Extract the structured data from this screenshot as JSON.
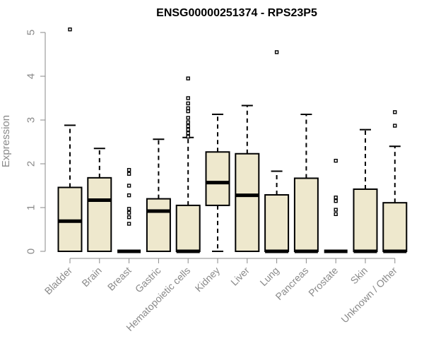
{
  "chart_data": {
    "type": "boxplot",
    "title": "ENSG00000251374 - RPS23P5",
    "ylabel": "Expression",
    "ylim": [
      0,
      5
    ],
    "yticks": [
      "0",
      "1",
      "2",
      "3",
      "4",
      "5"
    ],
    "box_color": "#eee8cd",
    "categories": [
      "Bladder",
      "Brain",
      "Breast",
      "Gastric",
      "Hematopoietic cells",
      "Kidney",
      "Liver",
      "Lung",
      "Pancreas",
      "Prostate",
      "Skin",
      "Unknown / Other"
    ],
    "boxes": [
      {
        "min": 0,
        "q1": 0,
        "median": 0.69,
        "q3": 1.46,
        "max": 2.88,
        "outliers": [
          5.07
        ]
      },
      {
        "min": 0,
        "q1": 0,
        "median": 1.17,
        "q3": 1.68,
        "max": 2.35,
        "outliers": []
      },
      {
        "min": 0,
        "q1": 0,
        "median": 0,
        "q3": 0,
        "max": 0,
        "outliers": [
          0.63,
          0.78,
          0.88,
          0.97,
          1.28,
          1.5,
          1.77,
          1.86
        ]
      },
      {
        "min": 0,
        "q1": 0,
        "median": 0.92,
        "q3": 1.2,
        "max": 2.56,
        "outliers": []
      },
      {
        "min": 0,
        "q1": 0,
        "median": 0,
        "q3": 1.05,
        "max": 2.6,
        "outliers": [
          2.62,
          2.7,
          2.78,
          2.86,
          2.95,
          3.05,
          3.2,
          3.27,
          3.38,
          3.5,
          3.95
        ]
      },
      {
        "min": 0,
        "q1": 1.05,
        "median": 1.57,
        "q3": 2.27,
        "max": 3.13,
        "outliers": []
      },
      {
        "min": 0,
        "q1": 0,
        "median": 1.28,
        "q3": 2.23,
        "max": 3.33,
        "outliers": []
      },
      {
        "min": 0,
        "q1": 0,
        "median": 0,
        "q3": 1.29,
        "max": 1.83,
        "outliers": [
          4.55
        ]
      },
      {
        "min": 0,
        "q1": 0,
        "median": 0,
        "q3": 1.67,
        "max": 3.13,
        "outliers": []
      },
      {
        "min": 0,
        "q1": 0,
        "median": 0,
        "q3": 0,
        "max": 0,
        "outliers": [
          0.85,
          0.95,
          1.15,
          1.23,
          2.07
        ]
      },
      {
        "min": 0,
        "q1": 0,
        "median": 0,
        "q3": 1.42,
        "max": 2.78,
        "outliers": []
      },
      {
        "min": 0,
        "q1": 0,
        "median": 0,
        "q3": 1.11,
        "max": 2.4,
        "outliers": [
          2.87,
          3.18
        ]
      }
    ]
  }
}
